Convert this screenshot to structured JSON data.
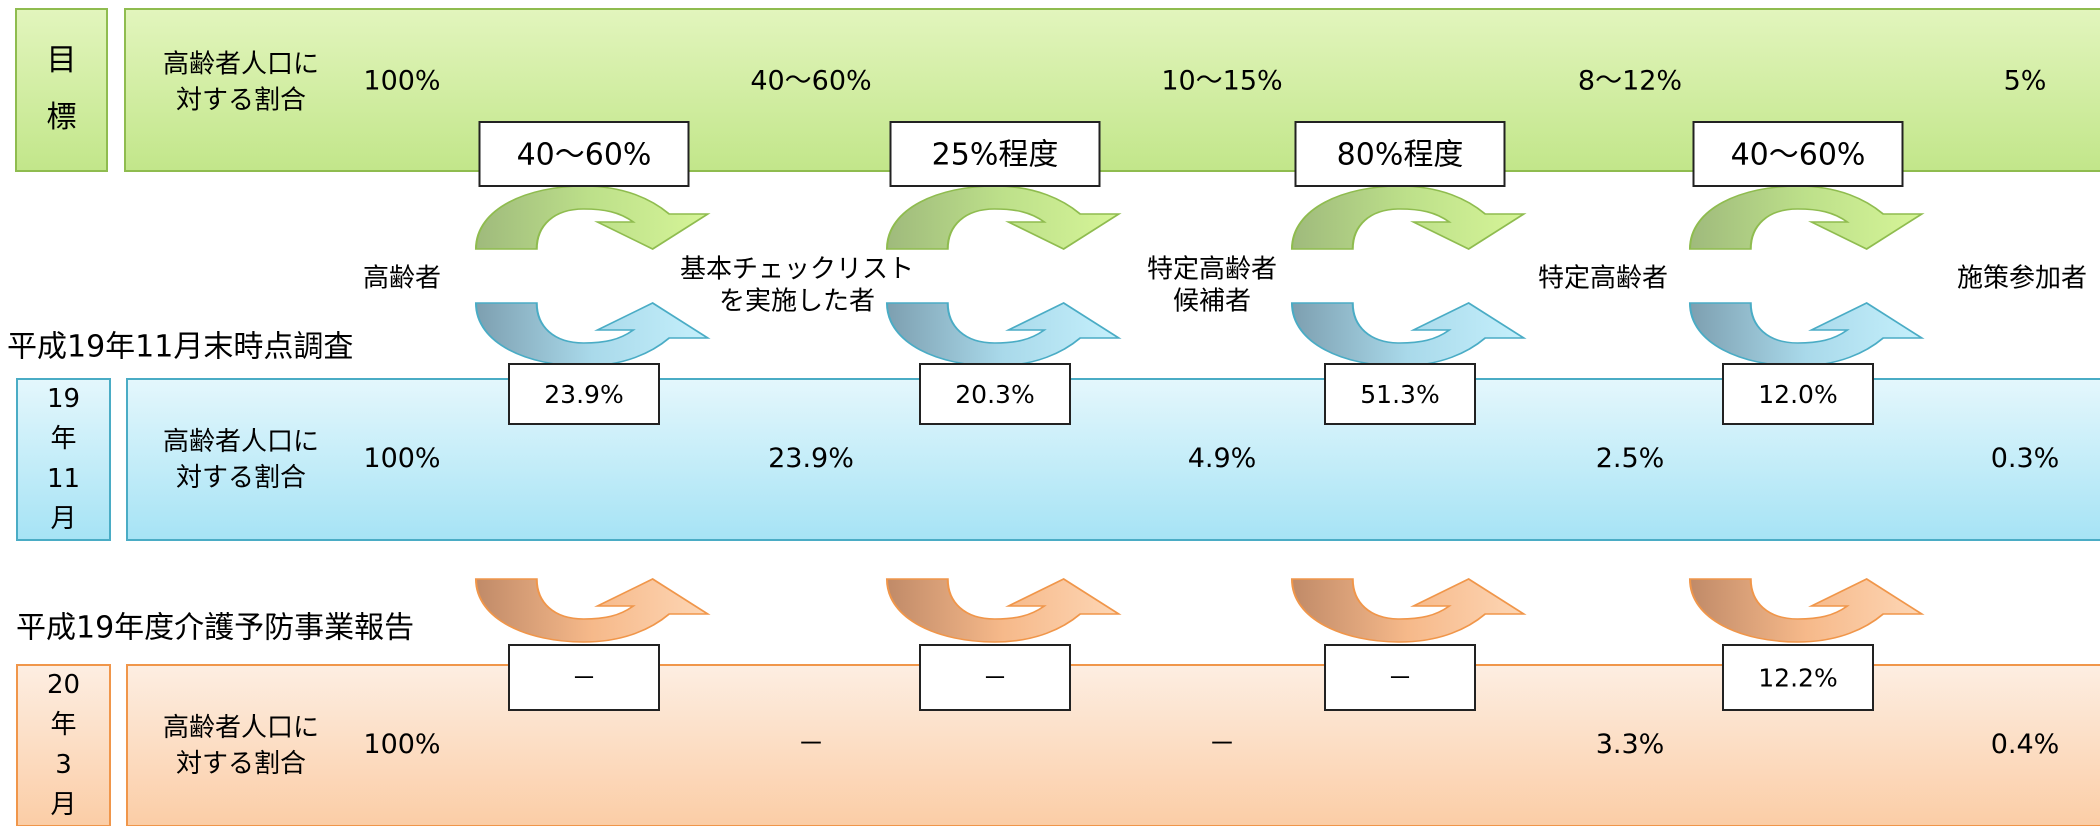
{
  "stages": [
    [
      "高齢者"
    ],
    [
      "基本チェックリスト",
      "を実施した者"
    ],
    [
      "特定高齢者",
      "候補者"
    ],
    [
      "特定高齢者"
    ],
    [
      "施策参加者"
    ]
  ],
  "rows": [
    {
      "label": [
        "目",
        "標"
      ],
      "row_label": [
        "高齢者人口に",
        "対する割合"
      ],
      "values": [
        "100%",
        "40〜60%",
        "10〜15%",
        "8〜12%",
        "5%"
      ],
      "rates": [
        "40〜60%",
        "25%程度",
        "80%程度",
        "40〜60%"
      ]
    },
    {
      "heading": "平成19年11月末時点調査",
      "label": [
        "19",
        "年",
        "11",
        "月"
      ],
      "row_label": [
        "高齢者人口に",
        "対する割合"
      ],
      "values": [
        "100%",
        "23.9%",
        "4.9%",
        "2.5%",
        "0.3%"
      ],
      "rates": [
        "23.9%",
        "20.3%",
        "51.3%",
        "12.0%"
      ]
    },
    {
      "heading": "平成19年度介護予防事業報告",
      "label": [
        "20",
        "年",
        "3",
        "月"
      ],
      "row_label": [
        "高齢者人口に",
        "対する割合"
      ],
      "values": [
        "100%",
        "－",
        "－",
        "3.3%",
        "0.4%"
      ],
      "rates": [
        "－",
        "－",
        "－",
        "12.2%"
      ]
    }
  ]
}
